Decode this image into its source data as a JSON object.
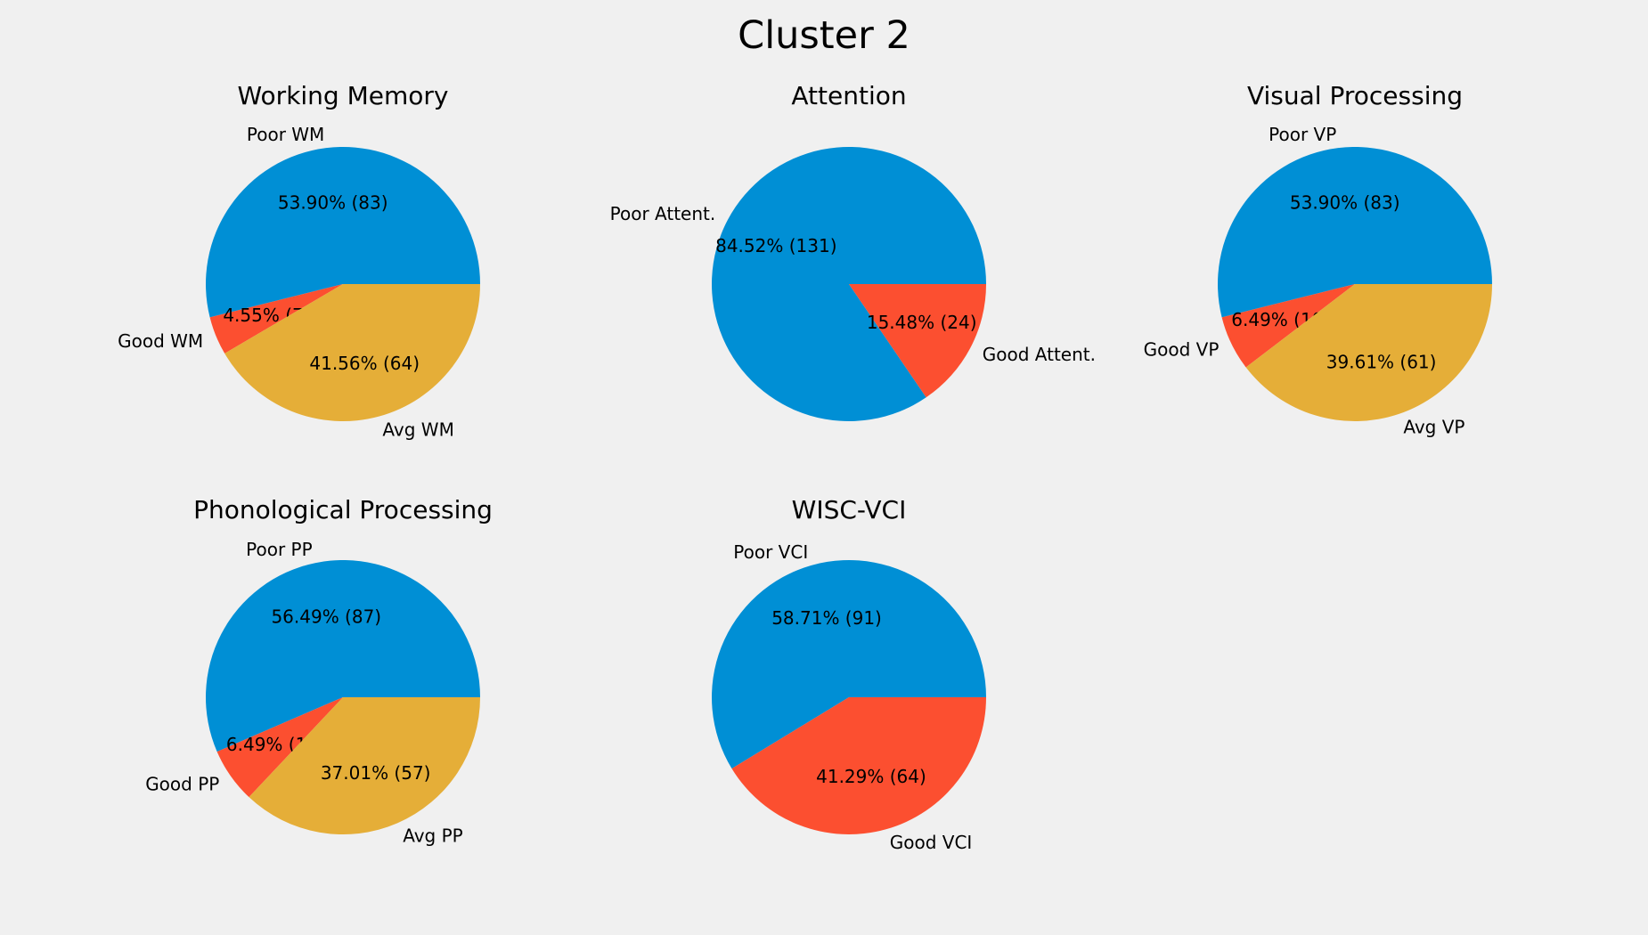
{
  "figure": {
    "title": "Cluster 2",
    "background": "#f0f0f0",
    "palette": [
      "#008fd5",
      "#fc4f30",
      "#e5ae38"
    ]
  },
  "chart_data": [
    {
      "type": "pie",
      "title": "Working Memory",
      "labels": [
        "Poor WM",
        "Good WM",
        "Avg WM"
      ],
      "values": [
        83,
        7,
        64
      ],
      "percent_labels": [
        "53.90%  (83)",
        "4.55%  (7)",
        "41.56%  (64)"
      ],
      "colors": [
        "#008fd5",
        "#fc4f30",
        "#e5ae38"
      ],
      "start_angle_deg": 0,
      "direction": "counterclockwise"
    },
    {
      "type": "pie",
      "title": "Attention",
      "labels": [
        "Poor Attent.",
        "Good Attent."
      ],
      "values": [
        131,
        24
      ],
      "percent_labels": [
        "84.52%  (131)",
        "15.48%  (24)"
      ],
      "colors": [
        "#008fd5",
        "#fc4f30"
      ],
      "start_angle_deg": 0,
      "direction": "counterclockwise"
    },
    {
      "type": "pie",
      "title": "Visual Processing",
      "labels": [
        "Poor VP",
        "Good VP",
        "Avg VP"
      ],
      "values": [
        83,
        10,
        61
      ],
      "percent_labels": [
        "53.90%  (83)",
        "6.49%  (10)",
        "39.61%  (61)"
      ],
      "colors": [
        "#008fd5",
        "#fc4f30",
        "#e5ae38"
      ],
      "start_angle_deg": 0,
      "direction": "counterclockwise"
    },
    {
      "type": "pie",
      "title": "Phonological Processing",
      "labels": [
        "Poor PP",
        "Good PP",
        "Avg PP"
      ],
      "values": [
        87,
        10,
        57
      ],
      "percent_labels": [
        "56.49%  (87)",
        "6.49%  (10)",
        "37.01%  (57)"
      ],
      "colors": [
        "#008fd5",
        "#fc4f30",
        "#e5ae38"
      ],
      "start_angle_deg": 0,
      "direction": "counterclockwise"
    },
    {
      "type": "pie",
      "title": "WISC-VCI",
      "labels": [
        "Poor VCI",
        "Good VCI"
      ],
      "values": [
        91,
        64
      ],
      "percent_labels": [
        "58.71%  (91)",
        "41.29%  (64)"
      ],
      "colors": [
        "#008fd5",
        "#fc4f30"
      ],
      "start_angle_deg": 0,
      "direction": "counterclockwise"
    }
  ]
}
